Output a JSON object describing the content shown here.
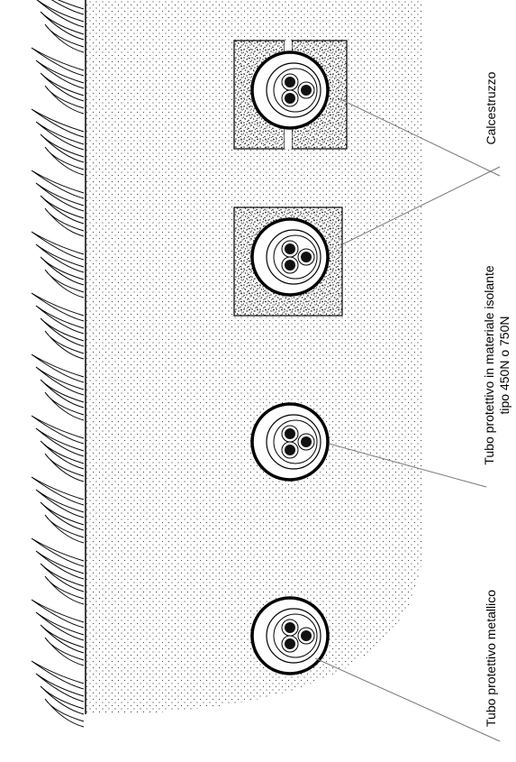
{
  "labels": {
    "concrete": "Calcestruzzo",
    "insulating_line1": "Tubo protettivo in materiale isolante",
    "insulating_line2": "tipo 450N o 750N",
    "metallic": "Tubo protettivo metallico"
  }
}
